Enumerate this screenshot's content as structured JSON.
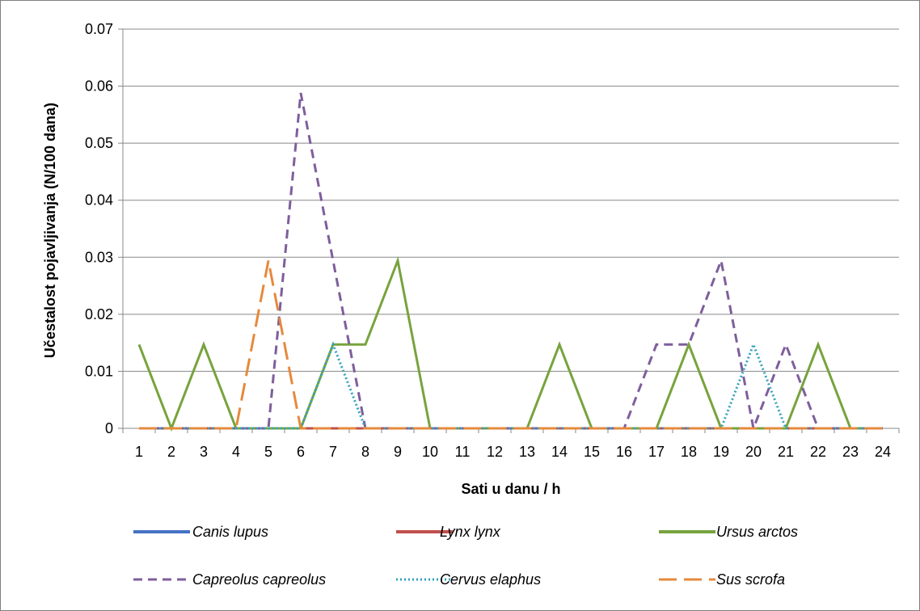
{
  "chart_data": {
    "type": "line",
    "title": "",
    "xlabel": "Sati u danu / h",
    "ylabel": "Učestalost pojavljivanja (N/100 dana)",
    "x": [
      1,
      2,
      3,
      4,
      5,
      6,
      7,
      8,
      9,
      10,
      11,
      12,
      13,
      14,
      15,
      16,
      17,
      18,
      19,
      20,
      21,
      22,
      23,
      24
    ],
    "x_tick_labels": [
      "1",
      "2",
      "3",
      "4",
      "5",
      "6",
      "7",
      "8",
      "9",
      "10",
      "11",
      "12",
      "13",
      "14",
      "15",
      "16",
      "17",
      "18",
      "19",
      "20",
      "21",
      "22",
      "23",
      "24"
    ],
    "y_tick_labels": [
      "0",
      "0.01",
      "0.02",
      "0.03",
      "0.04",
      "0.05",
      "0.06",
      "0.07"
    ],
    "ylim": [
      0,
      0.07
    ],
    "grid": "horizontal",
    "legend_position": "bottom",
    "series": [
      {
        "name": "Canis lupus",
        "color": "#4472c4",
        "style": "solid",
        "values": [
          0,
          0,
          0,
          0,
          0,
          0,
          0,
          0,
          0,
          0,
          0,
          0,
          0,
          0,
          0,
          0,
          0,
          0,
          0,
          0,
          0,
          0,
          0,
          0
        ]
      },
      {
        "name": "Lynx lynx",
        "color": "#c0504d",
        "style": "solid",
        "values": [
          0,
          0,
          0,
          0,
          0,
          0,
          0,
          0,
          0,
          0,
          0,
          0,
          0,
          0,
          0,
          0,
          0,
          0,
          0,
          0,
          0,
          0,
          0,
          0
        ]
      },
      {
        "name": "Ursus arctos",
        "color": "#77a33d",
        "style": "solid",
        "values": [
          0.0147,
          0,
          0.0147,
          0,
          0,
          0,
          0.0147,
          0.0147,
          0.0294,
          0,
          0,
          0,
          0,
          0.0147,
          0,
          0,
          0,
          0.0147,
          0,
          0,
          0,
          0.0147,
          0,
          0
        ]
      },
      {
        "name": "Capreolus capreolus",
        "color": "#7e5e9c",
        "style": "dash",
        "values": [
          0,
          0,
          0,
          0,
          0,
          0.0588,
          0.0294,
          0,
          0,
          0,
          0,
          0,
          0,
          0,
          0,
          0,
          0.0147,
          0.0147,
          0.0294,
          0,
          0.0147,
          0,
          0,
          0
        ]
      },
      {
        "name": "Cervus elaphus",
        "color": "#31a2bd",
        "style": "dot",
        "values": [
          0,
          0,
          0,
          0,
          0,
          0,
          0.0147,
          0,
          0,
          0,
          0,
          0,
          0,
          0,
          0,
          0,
          0,
          0,
          0,
          0.0147,
          0,
          0,
          0,
          0
        ]
      },
      {
        "name": "Sus scrofa",
        "color": "#e58a3c",
        "style": "longdash",
        "values": [
          0,
          0,
          0,
          0,
          0.0294,
          0,
          0,
          0,
          0,
          0,
          0,
          0,
          0,
          0,
          0,
          0,
          0,
          0,
          0,
          0,
          0,
          0,
          0,
          0
        ]
      }
    ]
  }
}
